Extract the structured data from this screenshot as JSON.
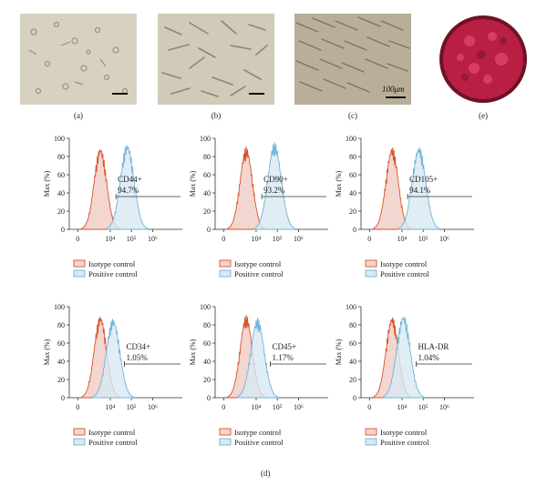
{
  "figure": {
    "photos": [
      {
        "label": "(a)"
      },
      {
        "label": "(b)"
      },
      {
        "label": "(c)",
        "scale_text": "100μm"
      },
      {
        "label": "(e)"
      }
    ],
    "panel_label_d": "(d)",
    "legend": {
      "isotype": "Isotype control",
      "positive": "Positive control"
    },
    "colors": {
      "isotype": "#d9532c",
      "positive": "#6fb5d9",
      "isotype_fill": "#f3d6cf",
      "positive_fill": "#d8e9f2"
    }
  },
  "chart_data": [
    {
      "type": "area",
      "marker": "CD44+",
      "percent": "94.7%",
      "ylabel": "Max (%)",
      "y_ticks": [
        "0",
        "20",
        "40",
        "60",
        "80",
        "100"
      ],
      "x_ticks": [
        "0",
        "10⁴",
        "10⁵",
        "10⁶"
      ],
      "ylim": [
        0,
        100
      ],
      "series": [
        {
          "name": "Isotype control",
          "peak": 91
        },
        {
          "name": "Positive control",
          "peak": 95
        }
      ]
    },
    {
      "type": "area",
      "marker": "CD90+",
      "percent": "93.2%",
      "ylabel": "Max (%)",
      "y_ticks": [
        "0",
        "20",
        "40",
        "60",
        "80",
        "100"
      ],
      "x_ticks": [
        "0",
        "10⁴",
        "10⁵",
        "10⁶"
      ],
      "ylim": [
        0,
        100
      ],
      "series": [
        {
          "name": "Isotype control",
          "peak": 91
        },
        {
          "name": "Positive control",
          "peak": 96
        }
      ]
    },
    {
      "type": "area",
      "marker": "CD105+",
      "percent": "94.1%",
      "ylabel": "Max (%)",
      "y_ticks": [
        "0",
        "20",
        "40",
        "60",
        "80",
        "100"
      ],
      "x_ticks": [
        "0",
        "10⁴",
        "10⁵",
        "10⁶"
      ],
      "ylim": [
        0,
        100
      ],
      "series": [
        {
          "name": "Isotype control",
          "peak": 91
        },
        {
          "name": "Positive control",
          "peak": 92
        }
      ]
    },
    {
      "type": "area",
      "marker": "CD34+",
      "percent": "1.05%",
      "ylabel": "Max (%)",
      "y_ticks": [
        "0",
        "20",
        "40",
        "60",
        "80",
        "100"
      ],
      "x_ticks": [
        "0",
        "10⁴",
        "10⁵",
        "10⁶"
      ],
      "ylim": [
        0,
        100
      ],
      "series": [
        {
          "name": "Isotype control",
          "peak": 91
        },
        {
          "name": "Positive control",
          "peak": 88
        }
      ]
    },
    {
      "type": "area",
      "marker": "CD45+",
      "percent": "1.17%",
      "ylabel": "Max (%)",
      "y_ticks": [
        "0",
        "20",
        "40",
        "60",
        "80",
        "100"
      ],
      "x_ticks": [
        "0",
        "10⁴",
        "10⁵",
        "10⁶"
      ],
      "ylim": [
        0,
        100
      ],
      "series": [
        {
          "name": "Isotype control",
          "peak": 91
        },
        {
          "name": "Positive control",
          "peak": 88
        }
      ]
    },
    {
      "type": "area",
      "marker": "HLA-DR",
      "percent": "1.04%",
      "ylabel": "Max (%)",
      "y_ticks": [
        "0",
        "20",
        "40",
        "60",
        "80",
        "100"
      ],
      "x_ticks": [
        "0",
        "10⁴",
        "10⁵",
        "10⁶"
      ],
      "ylim": [
        0,
        100
      ],
      "series": [
        {
          "name": "Isotype control",
          "peak": 90
        },
        {
          "name": "Positive control",
          "peak": 92
        }
      ]
    }
  ]
}
